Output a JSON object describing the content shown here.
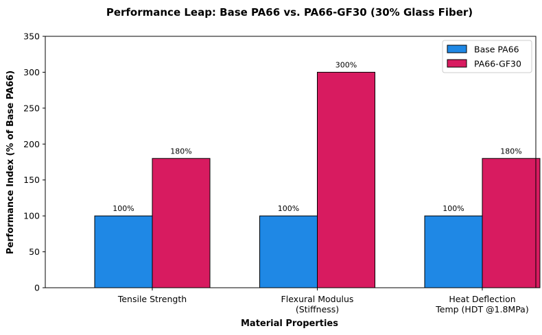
{
  "chart_data": {
    "type": "bar",
    "title": "Performance Leap: Base PA66 vs. PA66-GF30 (30% Glass Fiber)",
    "xlabel": "Material Properties",
    "ylabel": "Performance Index (% of Base PA66)",
    "categories": [
      [
        "Tensile Strength"
      ],
      [
        "Flexural Modulus",
        "(Stiffness)"
      ],
      [
        "Heat Deflection",
        "Temp (HDT @1.8MPa)"
      ]
    ],
    "series": [
      {
        "name": "Base PA66",
        "values": [
          100,
          100,
          100
        ],
        "labels": [
          "100%",
          "100%",
          "100%"
        ],
        "color": "#1f88e5"
      },
      {
        "name": "PA66-GF30",
        "values": [
          180,
          300,
          180
        ],
        "labels": [
          "180%",
          "300%",
          "180%"
        ],
        "color": "#d81b60"
      }
    ],
    "ylim": [
      0,
      350
    ],
    "yticks": [
      0,
      50,
      100,
      150,
      200,
      250,
      300,
      350
    ],
    "grid": false,
    "legend": "top-right"
  }
}
